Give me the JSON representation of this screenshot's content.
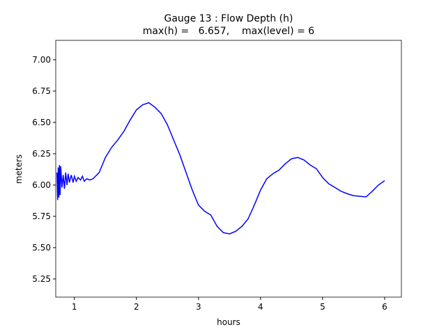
{
  "chart_data": {
    "type": "line",
    "title": [
      "Gauge 13 : Flow Depth (h)",
      "max(h) =   6.657,    max(level) = 6"
    ],
    "x_label": "hours",
    "y_label": "meters",
    "x": [
      0.72,
      0.73,
      0.74,
      0.75,
      0.76,
      0.77,
      0.78,
      0.8,
      0.82,
      0.84,
      0.86,
      0.88,
      0.9,
      0.92,
      0.95,
      0.98,
      1.0,
      1.03,
      1.06,
      1.1,
      1.13,
      1.16,
      1.2,
      1.25,
      1.3,
      1.4,
      1.5,
      1.6,
      1.7,
      1.8,
      1.9,
      2.0,
      2.1,
      2.2,
      2.3,
      2.4,
      2.5,
      2.6,
      2.7,
      2.8,
      2.9,
      3.0,
      3.1,
      3.2,
      3.3,
      3.4,
      3.5,
      3.6,
      3.7,
      3.8,
      3.9,
      4.0,
      4.1,
      4.2,
      4.3,
      4.4,
      4.5,
      4.6,
      4.7,
      4.8,
      4.9,
      5.0,
      5.1,
      5.2,
      5.3,
      5.4,
      5.5,
      5.6,
      5.7,
      5.8,
      5.9,
      6.0
    ],
    "series": [
      {
        "name": "h",
        "color": "#0000ff",
        "values": [
          6.1,
          5.88,
          6.14,
          5.9,
          6.16,
          5.92,
          6.15,
          5.98,
          6.08,
          5.97,
          6.1,
          6.0,
          6.09,
          6.02,
          6.08,
          6.02,
          6.07,
          6.03,
          6.06,
          6.04,
          6.07,
          6.03,
          6.05,
          6.04,
          6.05,
          6.1,
          6.22,
          6.3,
          6.36,
          6.43,
          6.52,
          6.6,
          6.64,
          6.657,
          6.62,
          6.57,
          6.48,
          6.36,
          6.24,
          6.1,
          5.96,
          5.84,
          5.79,
          5.76,
          5.67,
          5.62,
          5.61,
          5.63,
          5.67,
          5.73,
          5.84,
          5.96,
          6.05,
          6.09,
          6.12,
          6.17,
          6.21,
          6.22,
          6.2,
          6.16,
          6.13,
          6.06,
          6.01,
          5.98,
          5.95,
          5.93,
          5.915,
          5.91,
          5.905,
          5.95,
          6.0,
          6.035
        ]
      }
    ],
    "xlim": [
      0.7,
      6.27
    ],
    "ylim": [
      5.105,
      7.155
    ],
    "xticks": [
      1,
      2,
      3,
      4,
      5,
      6
    ],
    "yticks": [
      {
        "value": 5.25,
        "label": "5.25"
      },
      {
        "value": 5.5,
        "label": "5.50"
      },
      {
        "value": 5.75,
        "label": "5.75"
      },
      {
        "value": 6,
        "label": "6.00"
      },
      {
        "value": 6.25,
        "label": "6.25"
      },
      {
        "value": 6.5,
        "label": "6.50"
      },
      {
        "value": 6.75,
        "label": "6.75"
      },
      {
        "value": 7,
        "label": "7.00"
      }
    ],
    "grid": false
  }
}
